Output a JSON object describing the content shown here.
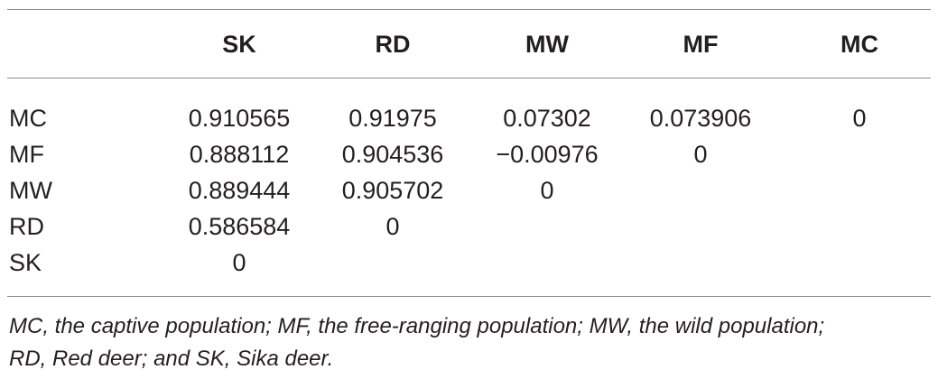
{
  "table": {
    "headers": [
      "",
      "SK",
      "RD",
      "MW",
      "MF",
      "MC"
    ],
    "rows": [
      {
        "label": "MC",
        "values": [
          "0.910565",
          "0.91975",
          "0.07302",
          "0.073906",
          "0"
        ]
      },
      {
        "label": "MF",
        "values": [
          "0.888112",
          "0.904536",
          "−0.00976",
          "0",
          ""
        ]
      },
      {
        "label": "MW",
        "values": [
          "0.889444",
          "0.905702",
          "0",
          "",
          ""
        ]
      },
      {
        "label": "RD",
        "values": [
          "0.586584",
          "0",
          "",
          "",
          ""
        ]
      },
      {
        "label": "SK",
        "values": [
          "0",
          "",
          "",
          "",
          ""
        ]
      }
    ]
  },
  "footnote": {
    "line1": "MC, the captive population; MF, the free-ranging population; MW, the wild population;",
    "line2": "RD, Red deer; and SK, Sika deer."
  }
}
